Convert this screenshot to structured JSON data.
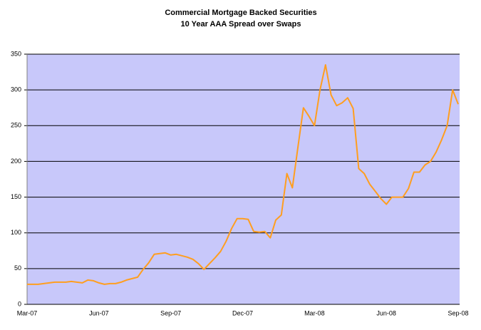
{
  "chart_data": {
    "type": "line",
    "title": "Commercial Mortgage Backed Securities",
    "subtitle": "10 Year AAA Spread over Swaps",
    "categories": [
      "Mar-07",
      null,
      null,
      null,
      null,
      null,
      null,
      null,
      null,
      null,
      null,
      null,
      null,
      "Jun-07",
      null,
      null,
      null,
      null,
      null,
      null,
      null,
      null,
      null,
      null,
      null,
      null,
      "Sep-07",
      null,
      null,
      null,
      null,
      null,
      null,
      null,
      null,
      null,
      null,
      null,
      null,
      "Dec-07",
      null,
      null,
      null,
      null,
      null,
      null,
      null,
      null,
      null,
      null,
      null,
      null,
      "Mar-08",
      null,
      null,
      null,
      null,
      null,
      null,
      null,
      null,
      null,
      null,
      null,
      null,
      "Jun-08",
      null,
      null,
      null,
      null,
      null,
      null,
      null,
      null,
      null,
      null,
      null,
      null,
      "Sep-08"
    ],
    "values": [
      28,
      28,
      28,
      29,
      30,
      31,
      31,
      31,
      32,
      31,
      30,
      34,
      33,
      30,
      28,
      29,
      29,
      31,
      34,
      36,
      38,
      49,
      58,
      70,
      71,
      72,
      69,
      70,
      68,
      66,
      63,
      57,
      49,
      57,
      65,
      74,
      88,
      106,
      120,
      120,
      119,
      102,
      101,
      102,
      93,
      118,
      125,
      183,
      163,
      220,
      275,
      263,
      250,
      300,
      335,
      293,
      278,
      282,
      289,
      274,
      190,
      183,
      168,
      158,
      148,
      140,
      150,
      150,
      150,
      162,
      185,
      185,
      195,
      200,
      213,
      230,
      250,
      300,
      280
    ],
    "color": "#ff9e1f",
    "ylim": [
      0,
      350
    ],
    "yticks": [
      0,
      50,
      100,
      150,
      200,
      250,
      300,
      350
    ],
    "grid": true
  }
}
